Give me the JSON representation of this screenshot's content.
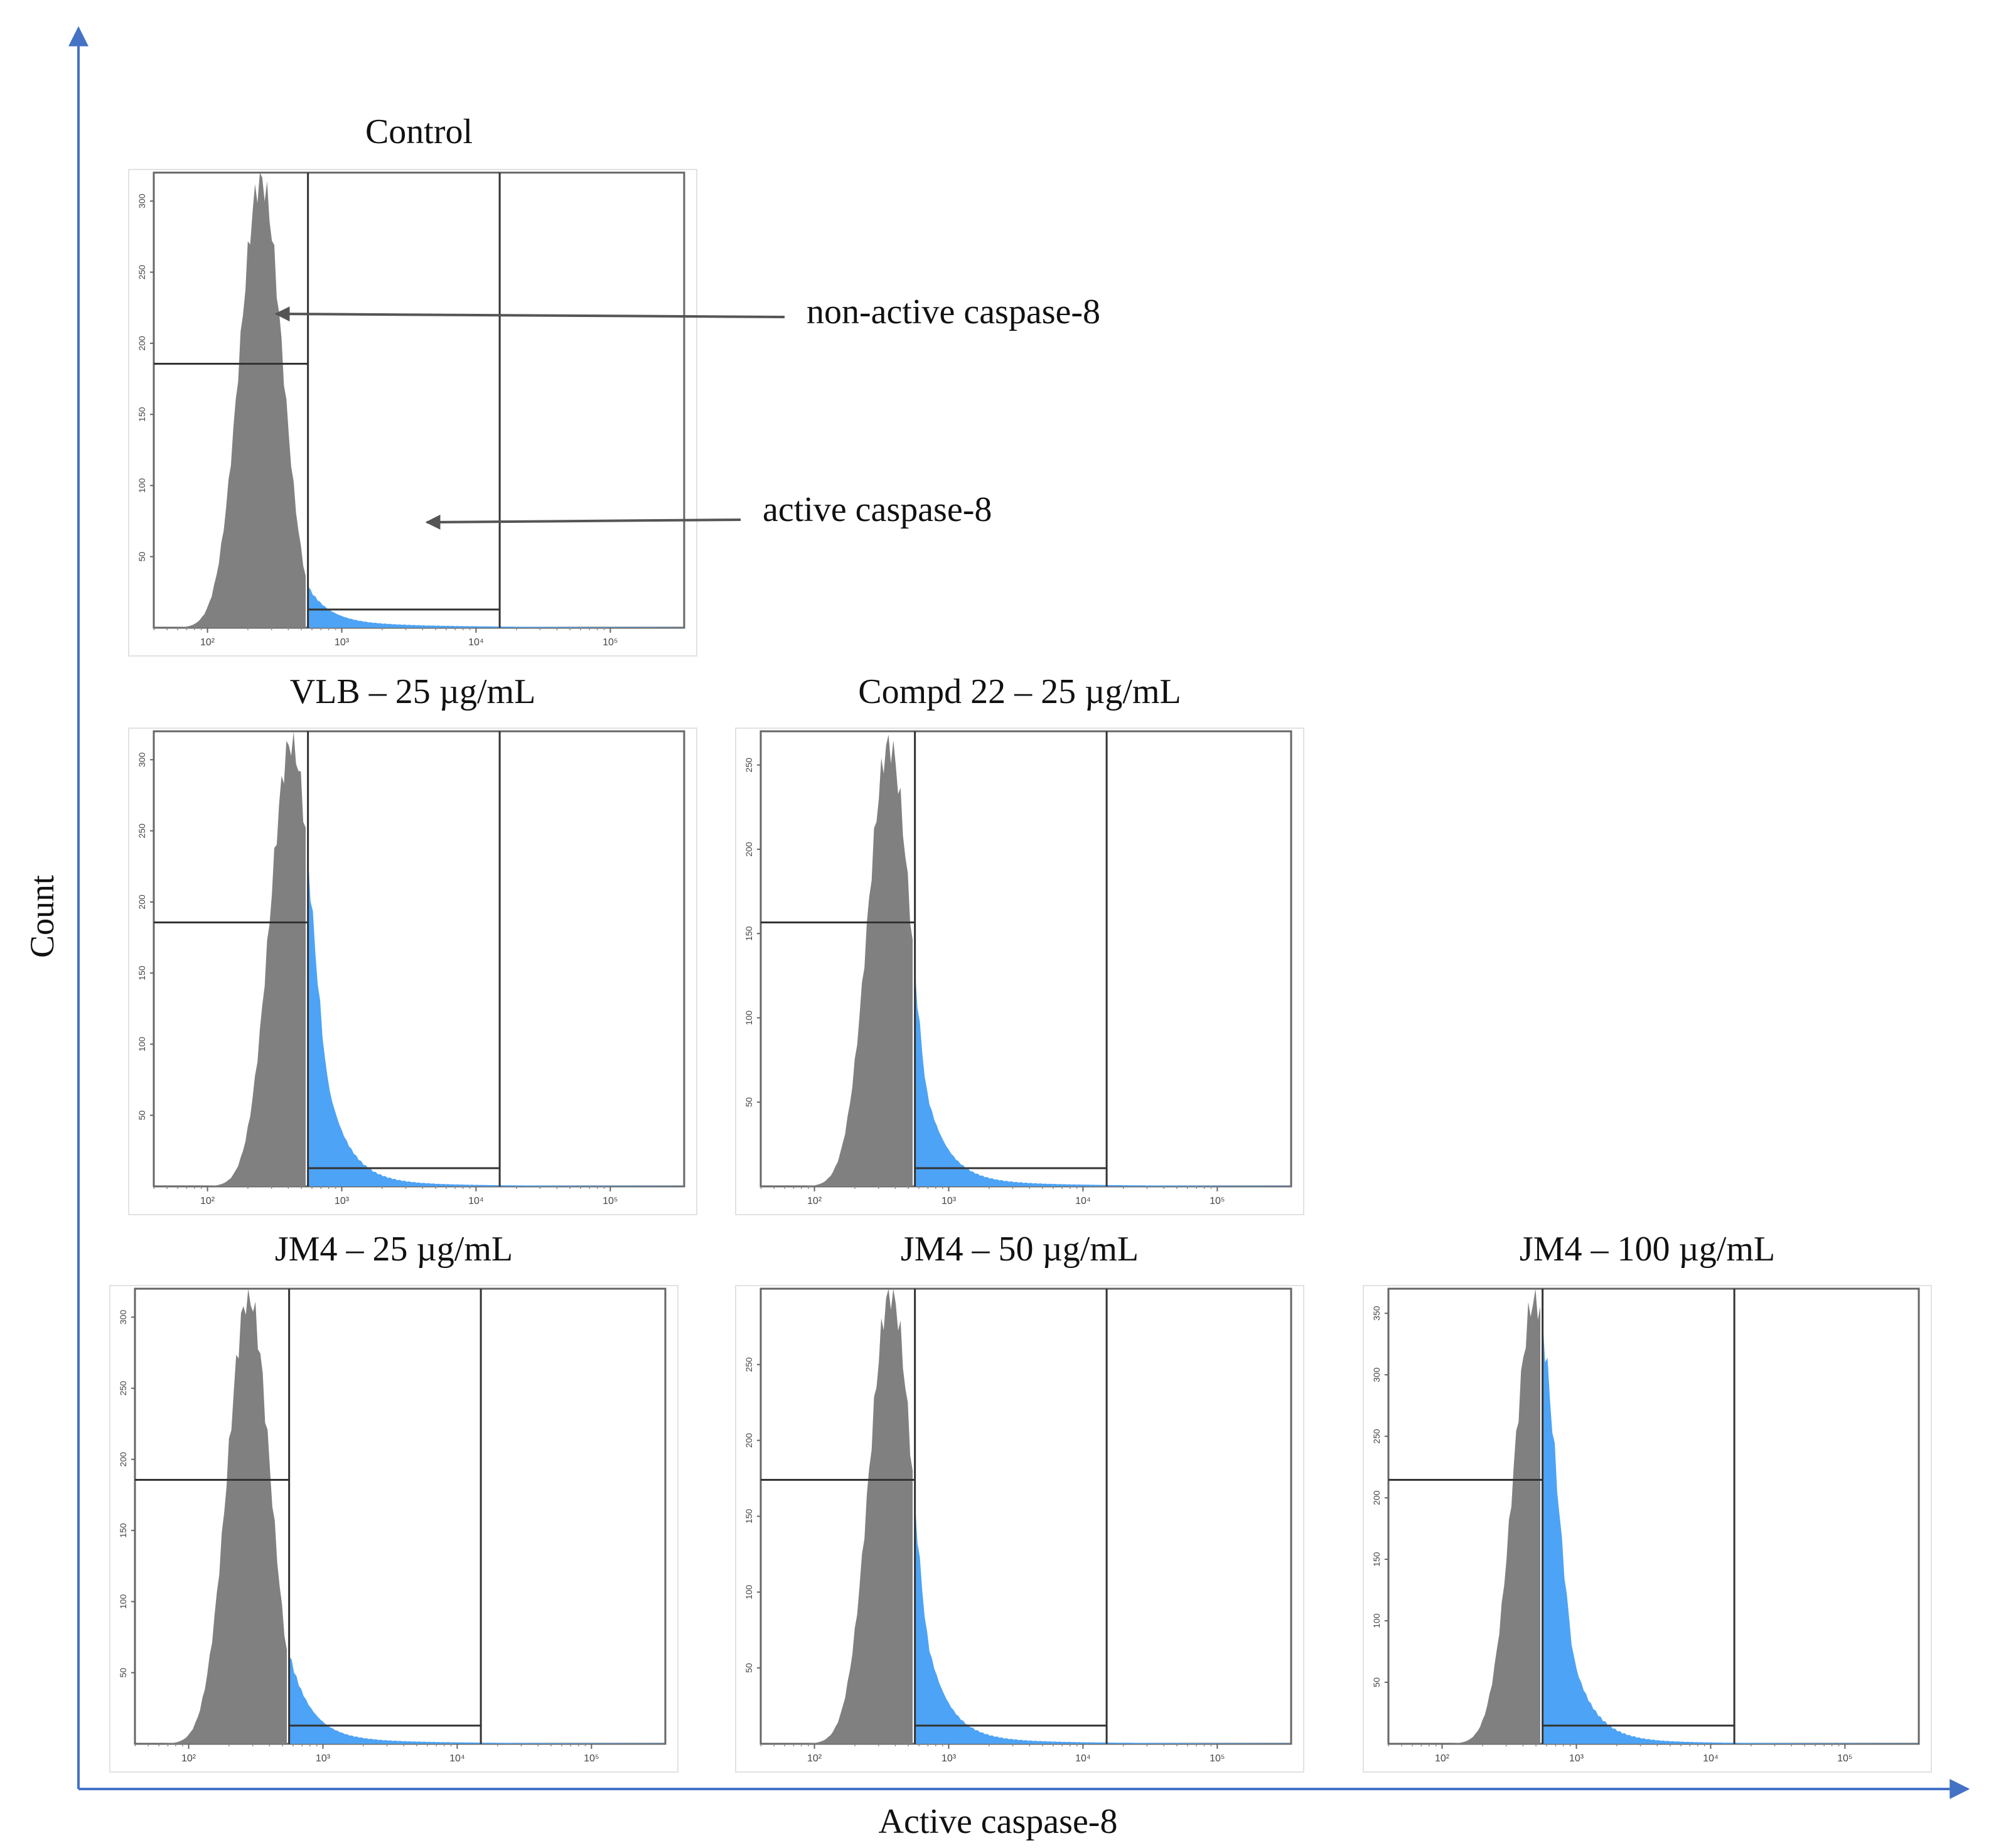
{
  "figure": {
    "y_axis_label": "Count",
    "x_axis_label": "Active caspase-8",
    "annotations": {
      "non_active": "non-active caspase-8",
      "active": "active caspase-8"
    },
    "colors": {
      "non_active_fill": "#808080",
      "active_fill": "#4da3f5",
      "axis_arrow": "#4472c4",
      "gate_line": "#333333",
      "frame": "#555555"
    }
  },
  "chart_data": [
    {
      "type": "area",
      "title": "Control",
      "x_scale": "log",
      "x_ticks": [
        "10²",
        "10³",
        "10⁴",
        "10⁵"
      ],
      "y_ticks": [
        "50",
        "100",
        "150",
        "200",
        "250",
        "300"
      ],
      "ylim": [
        0,
        320
      ],
      "peak_x": 250,
      "peak_y": 315,
      "gate_x": 560,
      "series": [
        {
          "name": "non-active caspase-8",
          "color": "#808080"
        },
        {
          "name": "active caspase-8",
          "color": "#4da3f5",
          "peak_y": 25
        }
      ]
    },
    {
      "type": "area",
      "title": "VLB – 25 µg/mL",
      "x_scale": "log",
      "x_ticks": [
        "10²",
        "10³",
        "10⁴",
        "10⁵"
      ],
      "y_ticks": [
        "50",
        "100",
        "150",
        "200",
        "250",
        "300"
      ],
      "ylim": [
        0,
        320
      ],
      "peak_x": 420,
      "peak_y": 312,
      "gate_x": 560,
      "series": [
        {
          "name": "non-active caspase-8",
          "color": "#808080"
        },
        {
          "name": "active caspase-8",
          "color": "#4da3f5",
          "peak_y": 175
        }
      ]
    },
    {
      "type": "area",
      "title": "Compd 22 – 25 µg/mL",
      "x_scale": "log",
      "x_ticks": [
        "10²",
        "10³",
        "10⁴",
        "10⁵"
      ],
      "y_ticks": [
        "50",
        "100",
        "150",
        "200",
        "250"
      ],
      "ylim": [
        0,
        270
      ],
      "peak_x": 360,
      "peak_y": 262,
      "gate_x": 560,
      "series": [
        {
          "name": "non-active caspase-8",
          "color": "#808080"
        },
        {
          "name": "active caspase-8",
          "color": "#4da3f5",
          "peak_y": 90
        }
      ]
    },
    {
      "type": "area",
      "title": "JM4 – 25 µg/mL",
      "x_scale": "log",
      "x_ticks": [
        "10²",
        "10³",
        "10⁴",
        "10⁵"
      ],
      "y_ticks": [
        "50",
        "100",
        "150",
        "200",
        "250",
        "300"
      ],
      "ylim": [
        0,
        320
      ],
      "peak_x": 280,
      "peak_y": 315,
      "gate_x": 560,
      "series": [
        {
          "name": "non-active caspase-8",
          "color": "#808080"
        },
        {
          "name": "active caspase-8",
          "color": "#4da3f5",
          "peak_y": 60
        }
      ]
    },
    {
      "type": "area",
      "title": "JM4 – 50 µg/mL",
      "x_scale": "log",
      "x_ticks": [
        "10²",
        "10³",
        "10⁴",
        "10⁵"
      ],
      "y_ticks": [
        "50",
        "100",
        "150",
        "200",
        "250"
      ],
      "ylim": [
        0,
        300
      ],
      "peak_x": 370,
      "peak_y": 298,
      "gate_x": 560,
      "series": [
        {
          "name": "non-active caspase-8",
          "color": "#808080"
        },
        {
          "name": "active caspase-8",
          "color": "#4da3f5",
          "peak_y": 115
        }
      ]
    },
    {
      "type": "area",
      "title": "JM4 – 100 µg/mL",
      "x_scale": "log",
      "x_ticks": [
        "10²",
        "10³",
        "10⁴",
        "10⁵"
      ],
      "y_ticks": [
        "50",
        "100",
        "150",
        "200",
        "250",
        "300",
        "350"
      ],
      "ylim": [
        0,
        370
      ],
      "peak_x": 490,
      "peak_y": 362,
      "gate_x": 560,
      "series": [
        {
          "name": "non-active caspase-8",
          "color": "#808080"
        },
        {
          "name": "active caspase-8",
          "color": "#4da3f5",
          "peak_y": 280
        }
      ]
    }
  ]
}
